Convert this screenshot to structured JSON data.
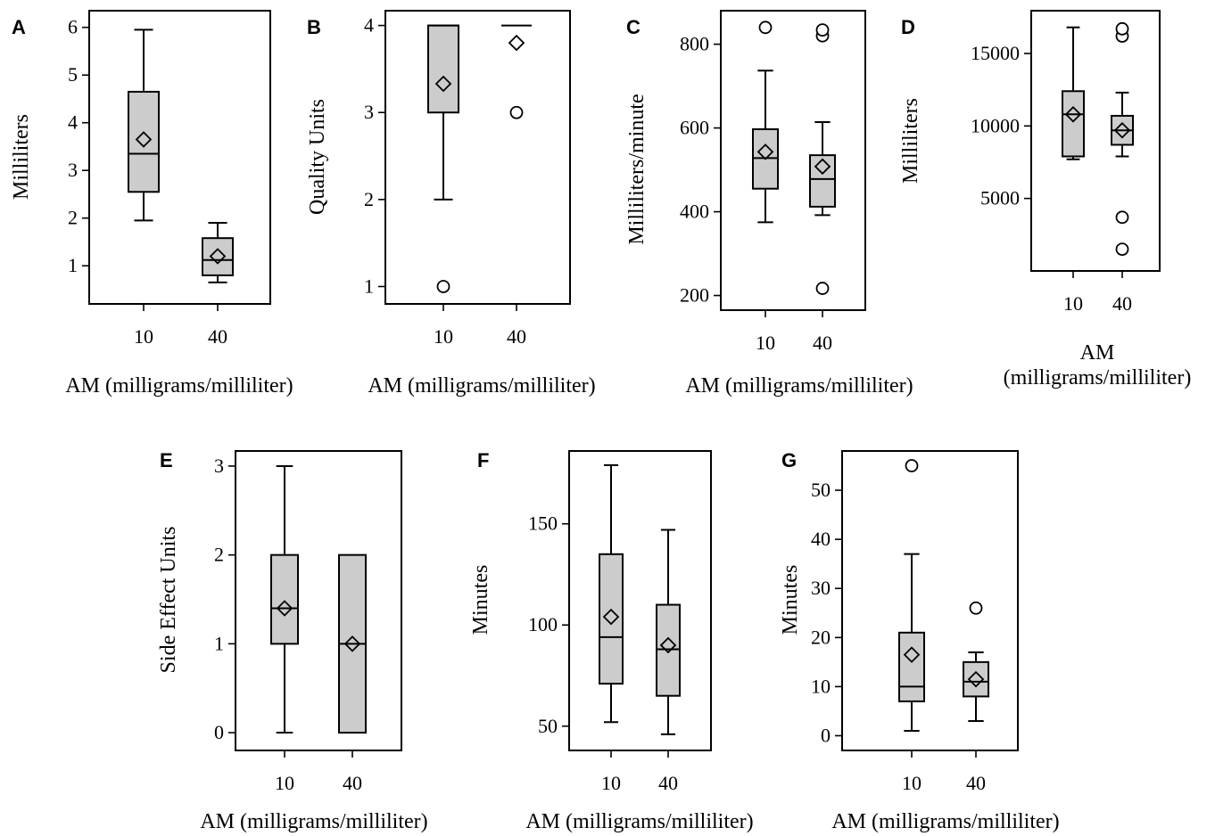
{
  "figure": {
    "panels": [
      {
        "letter": "A",
        "ylabel": "Milliliters",
        "xlabel": [
          "AM (milligrams/milliliter)"
        ]
      },
      {
        "letter": "B",
        "ylabel": "Quality Units",
        "xlabel": [
          "AM (milligrams/milliliter)"
        ]
      },
      {
        "letter": "C",
        "ylabel": "Milliliters/minute",
        "xlabel": [
          "AM (milligrams/milliliter)"
        ]
      },
      {
        "letter": "D",
        "ylabel": "Milliliters",
        "xlabel": [
          "AM",
          "(milligrams/milliliter)"
        ]
      },
      {
        "letter": "E",
        "ylabel": "Side Effect Units",
        "xlabel": [
          "AM (milligrams/milliliter)"
        ]
      },
      {
        "letter": "F",
        "ylabel": "Minutes",
        "xlabel": [
          "AM (milligrams/milliliter)"
        ]
      },
      {
        "letter": "G",
        "ylabel": "Minutes",
        "xlabel": [
          "AM (milligrams/milliliter)"
        ]
      }
    ]
  },
  "chart_data": [
    {
      "type": "box",
      "panel": "A",
      "ylabel": "Milliliters",
      "xlabel": "AM (milligrams/milliliter)",
      "categories": [
        "10",
        "40"
      ],
      "ylim": [
        0.2,
        6.35
      ],
      "yticks": [
        1,
        2,
        3,
        4,
        5,
        6
      ],
      "boxes": [
        {
          "category": "10",
          "whisker_low": 1.95,
          "q1": 2.55,
          "median": 3.35,
          "q3": 4.65,
          "whisker_high": 5.95,
          "mean": 3.65,
          "outliers": []
        },
        {
          "category": "40",
          "whisker_low": 0.65,
          "q1": 0.8,
          "median": 1.12,
          "q3": 1.58,
          "whisker_high": 1.9,
          "mean": 1.2,
          "outliers": []
        }
      ],
      "box_color": "#cccccc"
    },
    {
      "type": "box",
      "panel": "B",
      "ylabel": "Quality Units",
      "xlabel": "AM (milligrams/milliliter)",
      "categories": [
        "10",
        "40"
      ],
      "ylim": [
        0.8,
        4.17
      ],
      "yticks": [
        1,
        2,
        3,
        4
      ],
      "boxes": [
        {
          "category": "10",
          "whisker_low": 2.0,
          "q1": 3.0,
          "median": 4.0,
          "q3": 4.0,
          "whisker_high": 4.0,
          "mean": 3.33,
          "outliers": [
            1.0
          ]
        },
        {
          "category": "40",
          "whisker_low": 4.0,
          "q1": 4.0,
          "median": 4.0,
          "q3": 4.0,
          "whisker_high": 4.0,
          "mean": 3.8,
          "outliers": [
            3.0
          ]
        }
      ],
      "box_color": "#cccccc"
    },
    {
      "type": "box",
      "panel": "C",
      "ylabel": "Milliliters/minute",
      "xlabel": "AM (milligrams/milliliter)",
      "categories": [
        "10",
        "40"
      ],
      "ylim": [
        165,
        880
      ],
      "yticks": [
        200,
        400,
        600,
        800
      ],
      "boxes": [
        {
          "category": "10",
          "whisker_low": 375,
          "q1": 455,
          "median": 528,
          "q3": 597,
          "whisker_high": 737,
          "mean": 543,
          "outliers": [
            840
          ]
        },
        {
          "category": "40",
          "whisker_low": 392,
          "q1": 412,
          "median": 478,
          "q3": 535,
          "whisker_high": 614,
          "mean": 508,
          "outliers": [
            217,
            820,
            834
          ]
        }
      ],
      "box_color": "#cccccc"
    },
    {
      "type": "box",
      "panel": "D",
      "ylabel": "Milliliters",
      "xlabel": "AM (milligrams/milliliter)",
      "categories": [
        "10",
        "40"
      ],
      "ylim": [
        0,
        17950
      ],
      "yticks": [
        5000,
        10000,
        15000
      ],
      "boxes": [
        {
          "category": "10",
          "whisker_low": 7700,
          "q1": 7900,
          "median": 10800,
          "q3": 12400,
          "whisker_high": 16800,
          "mean": 10800,
          "outliers": []
        },
        {
          "category": "40",
          "whisker_low": 7900,
          "q1": 8700,
          "median": 9700,
          "q3": 10700,
          "whisker_high": 12300,
          "mean": 9700,
          "outliers": [
            1500,
            3700,
            16200,
            16700
          ]
        }
      ],
      "box_color": "#cccccc"
    },
    {
      "type": "box",
      "panel": "E",
      "ylabel": "Side Effect Units",
      "xlabel": "AM (milligrams/milliliter)",
      "categories": [
        "10",
        "40"
      ],
      "ylim": [
        -0.2,
        3.17
      ],
      "yticks": [
        0,
        1,
        2,
        3
      ],
      "boxes": [
        {
          "category": "10",
          "whisker_low": 0,
          "q1": 1,
          "median": 1.4,
          "q3": 2,
          "whisker_high": 3,
          "mean": 1.4,
          "outliers": []
        },
        {
          "category": "40",
          "whisker_low": 0,
          "q1": 0,
          "median": 1,
          "q3": 2,
          "whisker_high": 2,
          "mean": 1.0,
          "outliers": []
        }
      ],
      "box_color": "#cccccc"
    },
    {
      "type": "box",
      "panel": "F",
      "ylabel": "Minutes",
      "xlabel": "AM (milligrams/milliliter)",
      "categories": [
        "10",
        "40"
      ],
      "ylim": [
        38,
        186
      ],
      "yticks": [
        50,
        100,
        150
      ],
      "boxes": [
        {
          "category": "10",
          "whisker_low": 52,
          "q1": 71,
          "median": 94,
          "q3": 135,
          "whisker_high": 179,
          "mean": 104,
          "outliers": []
        },
        {
          "category": "40",
          "whisker_low": 46,
          "q1": 65,
          "median": 88,
          "q3": 110,
          "whisker_high": 147,
          "mean": 90,
          "outliers": []
        }
      ],
      "box_color": "#cccccc"
    },
    {
      "type": "box",
      "panel": "G",
      "ylabel": "Minutes",
      "xlabel": "AM (milligrams/milliliter)",
      "categories": [
        "10",
        "40"
      ],
      "ylim": [
        -3,
        58
      ],
      "yticks": [
        0,
        10,
        20,
        30,
        40,
        50
      ],
      "boxes": [
        {
          "category": "10",
          "whisker_low": 1,
          "q1": 7,
          "median": 10,
          "q3": 21,
          "whisker_high": 37,
          "mean": 16.5,
          "outliers": [
            55
          ]
        },
        {
          "category": "40",
          "whisker_low": 3,
          "q1": 8,
          "median": 11,
          "q3": 15,
          "whisker_high": 17,
          "mean": 11.5,
          "outliers": [
            26
          ]
        }
      ],
      "box_color": "#cccccc"
    }
  ]
}
